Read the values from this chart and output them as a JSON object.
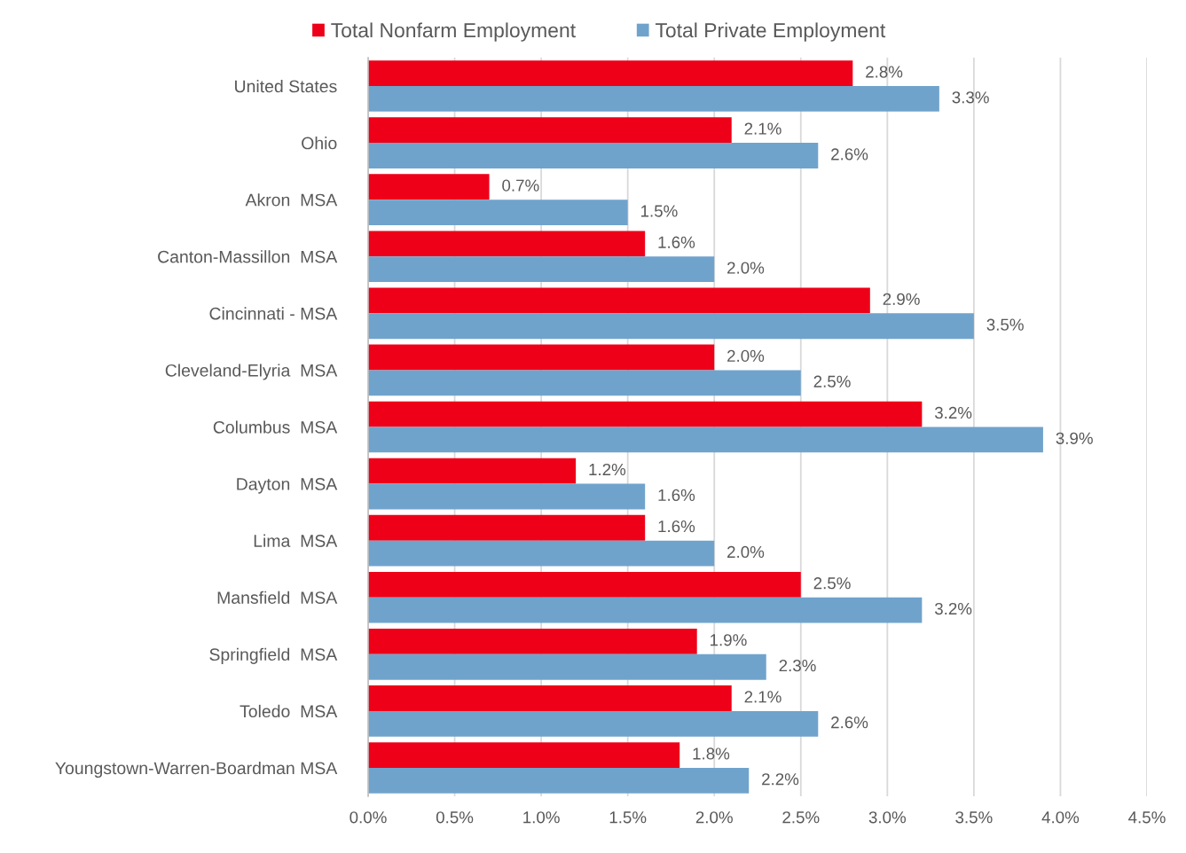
{
  "chart_data": {
    "type": "bar",
    "orientation": "horizontal",
    "categories": [
      "United States",
      "Ohio",
      "Akron  MSA",
      "Canton-Massillon  MSA",
      "Cincinnati - MSA",
      "Cleveland-Elyria  MSA",
      "Columbus  MSA",
      "Dayton  MSA",
      "Lima  MSA",
      "Mansfield  MSA",
      "Springfield  MSA",
      "Toledo  MSA",
      "Youngstown-Warren-Boardman MSA"
    ],
    "series": [
      {
        "name": "Total Nonfarm Employment",
        "color": "#ee0018",
        "values": [
          2.8,
          2.1,
          0.7,
          1.6,
          2.9,
          2.0,
          3.2,
          1.2,
          1.6,
          2.5,
          1.9,
          2.1,
          1.8
        ],
        "value_labels": [
          "2.8%",
          "2.1%",
          "0.7%",
          "1.6%",
          "2.9%",
          "2.0%",
          "3.2%",
          "1.2%",
          "1.6%",
          "2.5%",
          "1.9%",
          "2.1%",
          "1.8%"
        ]
      },
      {
        "name": "Total Private Employment",
        "color": "#70a3cc",
        "values": [
          3.3,
          2.6,
          1.5,
          2.0,
          3.5,
          2.5,
          3.9,
          1.6,
          2.0,
          3.2,
          2.3,
          2.6,
          2.2
        ],
        "value_labels": [
          "3.3%",
          "2.6%",
          "1.5%",
          "2.0%",
          "3.5%",
          "2.5%",
          "3.9%",
          "1.6%",
          "2.0%",
          "3.2%",
          "2.3%",
          "2.6%",
          "2.2%"
        ]
      }
    ],
    "xlim": [
      0,
      4.5
    ],
    "xticks": [
      {
        "value": 0,
        "label": "0.0%"
      },
      {
        "value": 0.5,
        "label": "0.5%"
      },
      {
        "value": 1.0,
        "label": "1.0%"
      },
      {
        "value": 1.5,
        "label": "1.5%"
      },
      {
        "value": 2.0,
        "label": "2.0%"
      },
      {
        "value": 2.5,
        "label": "2.5%"
      },
      {
        "value": 3.0,
        "label": "3.0%"
      },
      {
        "value": 3.5,
        "label": "3.5%"
      },
      {
        "value": 4.0,
        "label": "4.0%"
      },
      {
        "value": 4.5,
        "label": "4.5%"
      }
    ],
    "grid": "x",
    "legend": "top"
  }
}
